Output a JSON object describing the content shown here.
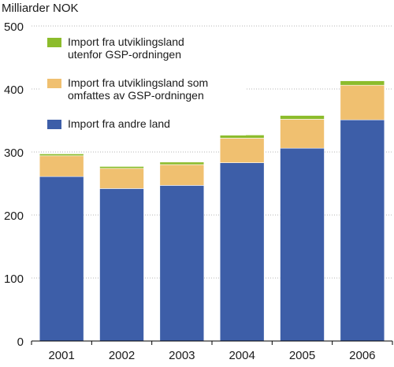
{
  "chart_data": {
    "type": "bar",
    "stacked": true,
    "title": "",
    "ylabel": "Milliarder NOK",
    "xlabel": "",
    "categories": [
      "2001",
      "2002",
      "2003",
      "2004",
      "2005",
      "2006"
    ],
    "ylim": [
      0,
      500
    ],
    "yticks": [
      0,
      100,
      200,
      300,
      400,
      500
    ],
    "grid": true,
    "legend_position": "top-left",
    "series": [
      {
        "name": "Import fra andre land",
        "color": "#3d5ea8",
        "values": [
          261,
          242,
          247,
          283,
          306,
          351
        ]
      },
      {
        "name": "Import fra utviklingsland som omfattes av GSP-ordningen",
        "color": "#f0c070",
        "values": [
          33,
          32,
          33,
          39,
          46,
          55
        ]
      },
      {
        "name": "Import fra utviklingsland utenfor GSP-ordningen",
        "color": "#8cbc2c",
        "values": [
          3,
          3,
          4,
          5,
          6,
          7
        ]
      }
    ],
    "legend": [
      {
        "lines": [
          "Import fra utviklingsland",
          "utenfor GSP-ordningen"
        ],
        "color": "#8cbc2c"
      },
      {
        "lines": [
          "Import fra utviklingsland som",
          "omfattes av GSP-ordningen"
        ],
        "color": "#f0c070"
      },
      {
        "lines": [
          "Import fra andre land"
        ],
        "color": "#3d5ea8"
      }
    ]
  }
}
